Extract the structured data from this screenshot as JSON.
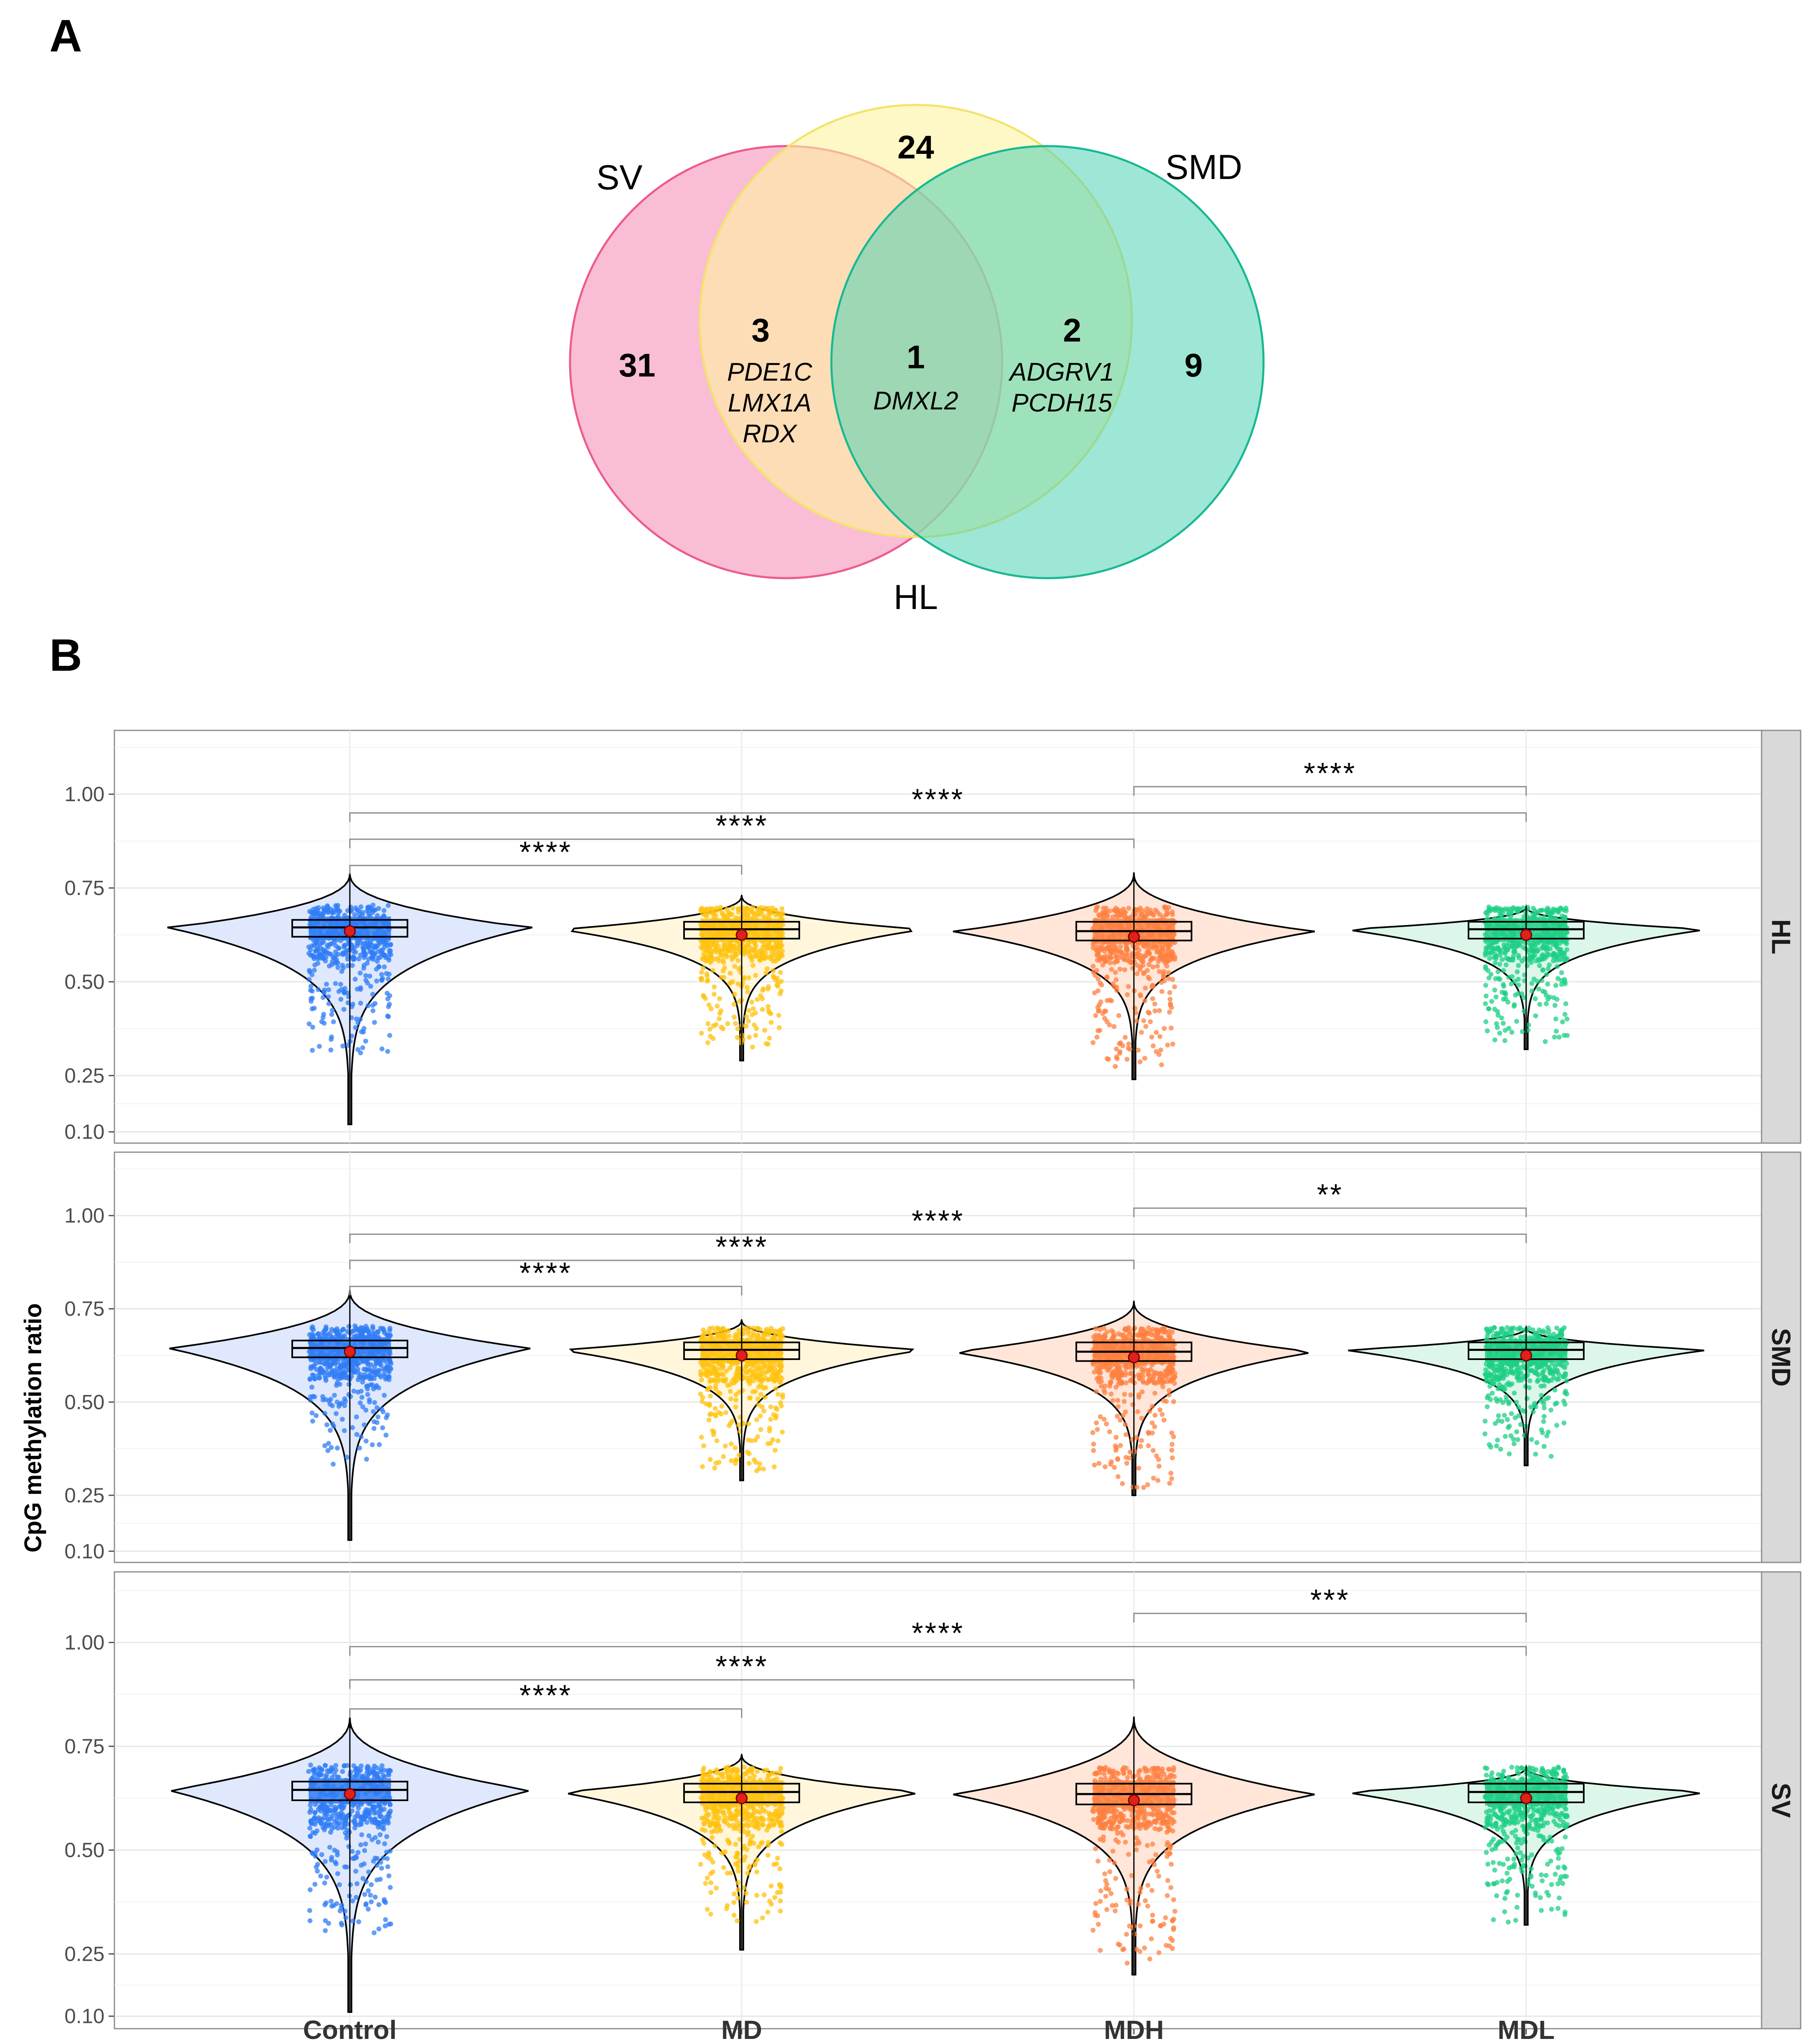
{
  "panel_a": {
    "letter": "A",
    "venn": {
      "sets": [
        {
          "name": "SV",
          "color": "#f79ac0"
        },
        {
          "name": "HL",
          "color": "#fdf2a0"
        },
        {
          "name": "SMD",
          "color": "#4fd2b2"
        }
      ],
      "regions": [
        {
          "id": "sv-only",
          "count": "31",
          "genes": []
        },
        {
          "id": "sv-hl",
          "count": "3",
          "genes": [
            "PDE1C",
            "LMX1A",
            "RDX"
          ]
        },
        {
          "id": "hl-only",
          "count": "24",
          "genes": []
        },
        {
          "id": "all",
          "count": "1",
          "genes": [
            "DMXL2"
          ]
        },
        {
          "id": "hl-smd",
          "count": "2",
          "genes": [
            "ADGRV1",
            "PCDH15"
          ]
        },
        {
          "id": "smd-only",
          "count": "9",
          "genes": []
        }
      ]
    }
  },
  "panel_b": {
    "letter": "B"
  },
  "chart_data": {
    "type": "violin",
    "ylabel": "CpG methylation ratio",
    "xlabel": "",
    "categories": [
      "Control",
      "MD",
      "MDH",
      "MDL"
    ],
    "colors": {
      "Control": "#2f7cf6",
      "MD": "#ffc20e",
      "MDH": "#ff8040",
      "MDL": "#1ecf84"
    },
    "fill_colors": {
      "Control": "#dfe8fd",
      "MD": "#fff6dc",
      "MDH": "#ffe6d9",
      "MDL": "#dcf7ea"
    },
    "ylim": [
      0.07,
      1.17
    ],
    "yticks": [
      0.1,
      0.25,
      0.5,
      0.75,
      1.0
    ],
    "ytick_labels": [
      "0.10",
      "0.25",
      "0.50",
      "0.75",
      "1.00"
    ],
    "facets": [
      {
        "label": "HL",
        "groups": [
          {
            "name": "Control",
            "min": 0.12,
            "q1": 0.62,
            "median": 0.645,
            "q3": 0.665,
            "max": 0.79,
            "mean": 0.635,
            "point_min": 0.3
          },
          {
            "name": "MD",
            "min": 0.29,
            "q1": 0.615,
            "median": 0.64,
            "q3": 0.66,
            "max": 0.73,
            "mean": 0.625,
            "point_min": 0.32
          },
          {
            "name": "MDH",
            "min": 0.24,
            "q1": 0.61,
            "median": 0.635,
            "q3": 0.66,
            "max": 0.79,
            "mean": 0.62,
            "point_min": 0.27
          },
          {
            "name": "MDL",
            "min": 0.32,
            "q1": 0.615,
            "median": 0.64,
            "q3": 0.66,
            "max": 0.7,
            "mean": 0.625,
            "point_min": 0.33
          }
        ],
        "comparisons": [
          {
            "from": "Control",
            "to": "MD",
            "label": "****",
            "y": 0.81
          },
          {
            "from": "Control",
            "to": "MDH",
            "label": "****",
            "y": 0.88
          },
          {
            "from": "Control",
            "to": "MDL",
            "label": "****",
            "y": 0.95
          },
          {
            "from": "MDH",
            "to": "MDL",
            "label": "****",
            "y": 1.02
          }
        ]
      },
      {
        "label": "SMD",
        "groups": [
          {
            "name": "Control",
            "min": 0.13,
            "q1": 0.62,
            "median": 0.645,
            "q3": 0.665,
            "max": 0.8,
            "mean": 0.635,
            "point_min": 0.33
          },
          {
            "name": "MD",
            "min": 0.29,
            "q1": 0.615,
            "median": 0.64,
            "q3": 0.66,
            "max": 0.72,
            "mean": 0.625,
            "point_min": 0.3
          },
          {
            "name": "MDH",
            "min": 0.25,
            "q1": 0.61,
            "median": 0.635,
            "q3": 0.66,
            "max": 0.77,
            "mean": 0.62,
            "point_min": 0.26
          },
          {
            "name": "MDL",
            "min": 0.33,
            "q1": 0.615,
            "median": 0.64,
            "q3": 0.66,
            "max": 0.7,
            "mean": 0.625,
            "point_min": 0.35
          }
        ],
        "comparisons": [
          {
            "from": "Control",
            "to": "MD",
            "label": "****",
            "y": 0.81
          },
          {
            "from": "Control",
            "to": "MDH",
            "label": "****",
            "y": 0.88
          },
          {
            "from": "Control",
            "to": "MDL",
            "label": "****",
            "y": 0.95
          },
          {
            "from": "MDH",
            "to": "MDL",
            "label": "**",
            "y": 1.02
          }
        ]
      },
      {
        "label": "SV",
        "groups": [
          {
            "name": "Control",
            "min": 0.11,
            "q1": 0.62,
            "median": 0.645,
            "q3": 0.665,
            "max": 0.82,
            "mean": 0.635,
            "point_min": 0.3
          },
          {
            "name": "MD",
            "min": 0.26,
            "q1": 0.615,
            "median": 0.64,
            "q3": 0.66,
            "max": 0.73,
            "mean": 0.625,
            "point_min": 0.32
          },
          {
            "name": "MDH",
            "min": 0.2,
            "q1": 0.61,
            "median": 0.635,
            "q3": 0.66,
            "max": 0.82,
            "mean": 0.62,
            "point_min": 0.22
          },
          {
            "name": "MDL",
            "min": 0.32,
            "q1": 0.615,
            "median": 0.64,
            "q3": 0.66,
            "max": 0.7,
            "mean": 0.625,
            "point_min": 0.32
          }
        ],
        "comparisons": [
          {
            "from": "Control",
            "to": "MD",
            "label": "****",
            "y": 0.84
          },
          {
            "from": "Control",
            "to": "MDH",
            "label": "****",
            "y": 0.91
          },
          {
            "from": "Control",
            "to": "MDL",
            "label": "****",
            "y": 0.99
          },
          {
            "from": "MDH",
            "to": "MDL",
            "label": "***",
            "y": 1.07
          }
        ]
      }
    ]
  }
}
